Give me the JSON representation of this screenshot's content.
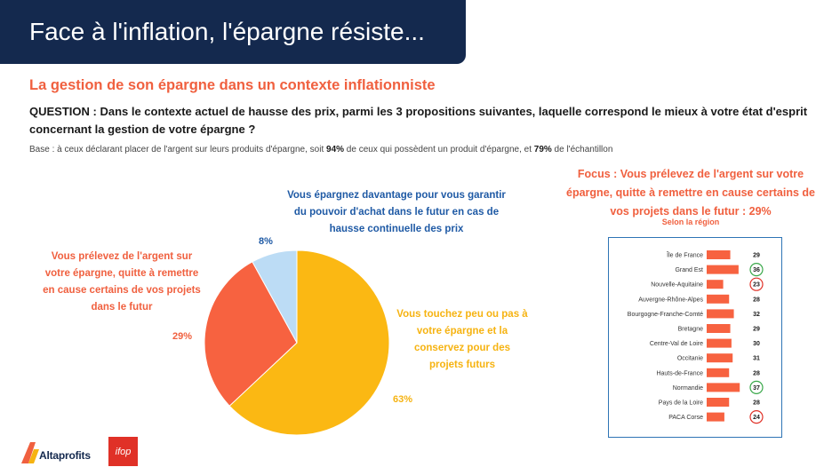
{
  "header": {
    "title": "Face à l'inflation, l'épargne résiste..."
  },
  "subtitle": "La gestion de son épargne dans un contexte inflationniste",
  "question": "QUESTION : Dans le contexte actuel de hausse des prix, parmi les 3 propositions suivantes, laquelle correspond le mieux à votre état d'esprit concernant la gestion de votre épargne ?",
  "base": {
    "prefix": "Base : à ceux déclarant placer de l'argent sur leurs produits d'épargne, soit ",
    "pct1": "94%",
    "middle": " de ceux qui possèdent un produit d'épargne, et ",
    "pct2": "79%",
    "suffix": " de l'échantillon"
  },
  "colors": {
    "banner": "#14294e",
    "orange": "#f0603f",
    "yellow": "#fbb813",
    "lightblue": "#bcdcf5",
    "blue": "#1f5aa5",
    "green": "#3aa84a",
    "red": "#e03127"
  },
  "chart_data": [
    {
      "type": "pie",
      "slices": [
        {
          "label": "Vous touchez peu ou pas à votre épargne et la conservez pour des projets futurs",
          "value": 63,
          "display": "63%",
          "color": "#fbb813"
        },
        {
          "label": "Vous prélevez de l'argent sur votre épargne, quitte à remettre en cause certains de vos projets dans le futur",
          "value": 29,
          "display": "29%",
          "color": "#f76240"
        },
        {
          "label": "Vous épargnez davantage pour vous garantir du pouvoir d'achat dans le futur en cas de hausse continuelle des prix",
          "value": 8,
          "display": "8%",
          "color": "#bcdcf5"
        }
      ]
    },
    {
      "type": "bar",
      "title": "Focus : Vous prélevez de l'argent sur votre épargne, quitte à remettre en cause certains de vos projets dans le futur : 29%",
      "subtitle": "Selon la région",
      "categories": [
        "Île de France",
        "Grand Est",
        "Nouvelle-Aquitaine",
        "Auvergne-Rhône-Alpes",
        "Bourgogne-Franche-Comté",
        "Bretagne",
        "Centre-Val de Loire",
        "Occitanie",
        "Hauts-de-France",
        "Normandie",
        "Pays de la Loire",
        "PACA Corse"
      ],
      "values": [
        29,
        36,
        23,
        28,
        32,
        29,
        30,
        31,
        28,
        37,
        28,
        24
      ],
      "highlight": {
        "Grand Est": "green",
        "Nouvelle-Aquitaine": "red",
        "Normandie": "green",
        "PACA Corse": "red"
      },
      "bar_color": "#f76240"
    }
  ],
  "logos": {
    "altaprofits": "Altaprofits",
    "ifop": "ifop"
  }
}
